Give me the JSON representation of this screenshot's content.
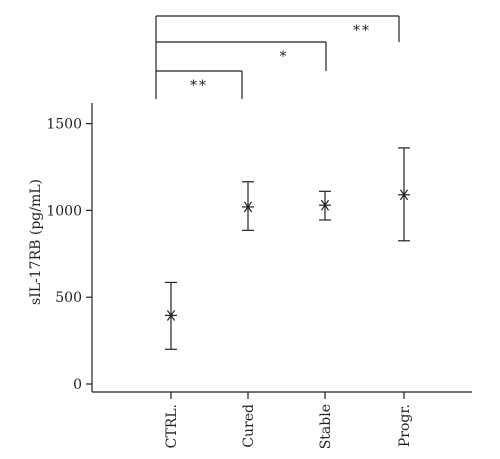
{
  "colors": {
    "ink": "#222222",
    "background": "#ffffff"
  },
  "chart_data": {
    "type": "scatter",
    "title": "",
    "xlabel": "",
    "ylabel": "sIL-17RB (pg/mL)",
    "categories": [
      "CTRL.",
      "Cured",
      "Stable",
      "Progr."
    ],
    "series": [
      {
        "marker": "asterisk",
        "values": [
          395,
          1020,
          1030,
          1090
        ],
        "error_low": [
          200,
          885,
          945,
          825
        ],
        "error_high": [
          585,
          1165,
          1110,
          1360
        ]
      }
    ],
    "ylim": [
      0,
      1600
    ],
    "yticks": [
      0,
      500,
      1000,
      1500
    ],
    "ytick_labels": [
      "0",
      "500",
      "1000",
      "1500"
    ],
    "grid": false,
    "legend": "none",
    "significance": [
      {
        "from": "CTRL.",
        "to": "Cured",
        "label": "**"
      },
      {
        "from": "CTRL.",
        "to": "Stable",
        "label": "*"
      },
      {
        "from": "CTRL.",
        "to": "Progr.",
        "label": "**"
      }
    ]
  }
}
